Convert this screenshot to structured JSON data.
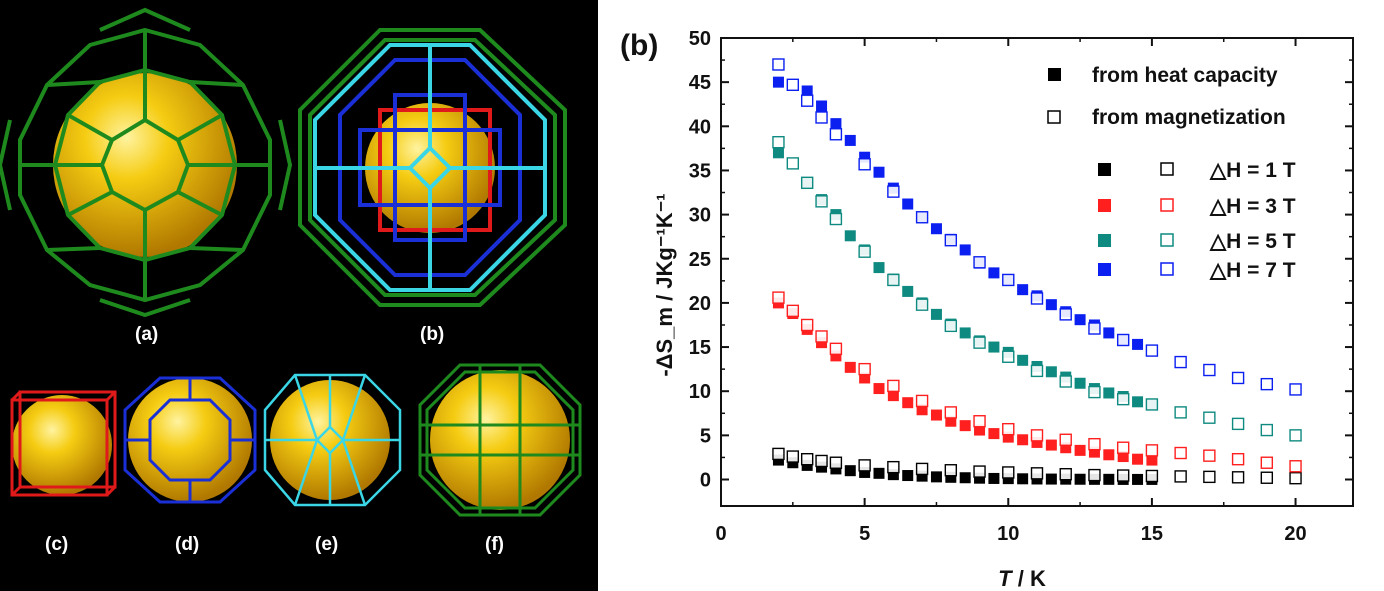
{
  "left_panel": {
    "labels": [
      "(a)",
      "(b)",
      "(c)",
      "(d)",
      "(e)",
      "(f)"
    ],
    "colors": {
      "background": "#000000",
      "sphere": "#f2c20a",
      "green_cage": "#1e8a1e",
      "blue_cage": "#1a2fd6",
      "cyan_cage": "#3ad6e6",
      "red_cage": "#e01a1a"
    }
  },
  "chart_data": {
    "type": "scatter",
    "panel_label": "(b)",
    "xlabel_italic": "T",
    "xlabel_rest": " / K",
    "ylabel": "-ΔS_m / JKg⁻¹K⁻¹",
    "xlim": [
      0,
      22
    ],
    "ylim": [
      -3,
      50
    ],
    "xticks": [
      0,
      5,
      10,
      15,
      20
    ],
    "yticks": [
      0,
      5,
      10,
      15,
      20,
      25,
      30,
      35,
      40,
      45,
      50
    ],
    "grid": false,
    "legend": {
      "placement": "top-right",
      "marker_entries": [
        {
          "label": "from heat capacity",
          "marker": "filled",
          "color": "#000000"
        },
        {
          "label": "from magnetization",
          "marker": "open",
          "color": "#000000"
        }
      ],
      "field_entries": [
        {
          "label": "△H = 1 T",
          "color": "#000000"
        },
        {
          "label": "△H = 3 T",
          "color": "#ff1f1f"
        },
        {
          "label": "△H = 5 T",
          "color": "#0f8a80"
        },
        {
          "label": "△H = 7 T",
          "color": "#0a1ff0"
        }
      ]
    },
    "series": [
      {
        "field": "1 T",
        "source": "heat capacity",
        "marker": "filled",
        "color": "#000000",
        "x": [
          2,
          2.5,
          3,
          3.5,
          4,
          4.5,
          5,
          5.5,
          6,
          6.5,
          7,
          7.5,
          8,
          8.5,
          9,
          9.5,
          10,
          10.5,
          11,
          11.5,
          12,
          12.5,
          13,
          13.5,
          14,
          14.5,
          15
        ],
        "y": [
          2.2,
          1.9,
          1.6,
          1.4,
          1.2,
          1.0,
          0.8,
          0.7,
          0.55,
          0.45,
          0.38,
          0.3,
          0.25,
          0.2,
          0.15,
          0.12,
          0.1,
          0.08,
          0.06,
          0.05,
          0.04,
          0.03,
          0.02,
          0.02,
          0.01,
          0.01,
          0.01
        ]
      },
      {
        "field": "1 T",
        "source": "magnetization",
        "marker": "open",
        "color": "#000000",
        "x": [
          2,
          2.5,
          3,
          3.5,
          4,
          5,
          6,
          7,
          8,
          9,
          10,
          11,
          12,
          13,
          14,
          15,
          16,
          17,
          18,
          19,
          20
        ],
        "y": [
          2.9,
          2.6,
          2.3,
          2.1,
          1.9,
          1.6,
          1.4,
          1.2,
          1.05,
          0.9,
          0.8,
          0.7,
          0.6,
          0.5,
          0.45,
          0.4,
          0.35,
          0.3,
          0.25,
          0.2,
          0.15
        ]
      },
      {
        "field": "3 T",
        "source": "heat capacity",
        "marker": "filled",
        "color": "#ff1f1f",
        "x": [
          2,
          2.5,
          3,
          3.5,
          4,
          4.5,
          5,
          5.5,
          6,
          6.5,
          7,
          7.5,
          8,
          8.5,
          9,
          9.5,
          10,
          10.5,
          11,
          11.5,
          12,
          12.5,
          13,
          13.5,
          14,
          14.5,
          15
        ],
        "y": [
          20,
          18.8,
          17,
          15.5,
          14,
          12.7,
          11.5,
          10.3,
          9.5,
          8.7,
          7.9,
          7.3,
          6.6,
          6.1,
          5.6,
          5.2,
          4.8,
          4.5,
          4.2,
          3.9,
          3.6,
          3.3,
          3.1,
          2.8,
          2.6,
          2.3,
          2.2
        ]
      },
      {
        "field": "3 T",
        "source": "magnetization",
        "marker": "open",
        "color": "#ff1f1f",
        "x": [
          2,
          2.5,
          3,
          3.5,
          4,
          5,
          6,
          7,
          8,
          9,
          10,
          11,
          12,
          13,
          14,
          15,
          16,
          17,
          18,
          19,
          20
        ],
        "y": [
          20.6,
          19.1,
          17.5,
          16.2,
          14.8,
          12.5,
          10.6,
          8.9,
          7.6,
          6.6,
          5.7,
          5.0,
          4.5,
          4.0,
          3.6,
          3.3,
          3.0,
          2.7,
          2.3,
          1.9,
          1.5
        ]
      },
      {
        "field": "5 T",
        "source": "heat capacity",
        "marker": "filled",
        "color": "#0f8a80",
        "x": [
          2,
          3,
          3.5,
          4,
          4.5,
          5,
          5.5,
          6,
          6.5,
          7,
          7.5,
          8,
          8.5,
          9,
          9.5,
          10,
          10.5,
          11,
          11.5,
          12,
          12.5,
          13,
          13.5,
          14,
          14.5,
          15
        ],
        "y": [
          37,
          33.6,
          31.7,
          30,
          27.6,
          26,
          24,
          22.7,
          21.3,
          20,
          18.7,
          17.6,
          16.6,
          15.7,
          15,
          14.4,
          13.5,
          12.8,
          12.2,
          11.6,
          10.9,
          10.3,
          9.8,
          9.4,
          8.8,
          8.5
        ]
      },
      {
        "field": "5 T",
        "source": "magnetization",
        "marker": "open",
        "color": "#0f8a80",
        "x": [
          2,
          2.5,
          3,
          3.5,
          4,
          5,
          6,
          7,
          8,
          9,
          10,
          11,
          12,
          13,
          14,
          15,
          16,
          17,
          18,
          19,
          20
        ],
        "y": [
          38.2,
          35.8,
          33.6,
          31.5,
          29.5,
          25.8,
          22.6,
          19.8,
          17.4,
          15.5,
          13.9,
          12.3,
          11.1,
          9.9,
          9.1,
          8.5,
          7.6,
          7.0,
          6.3,
          5.6,
          5.0
        ]
      },
      {
        "field": "7 T",
        "source": "heat capacity",
        "marker": "filled",
        "color": "#0a1ff0",
        "x": [
          2,
          3,
          3.5,
          4,
          4.5,
          5,
          5.5,
          6,
          6.5,
          7,
          7.5,
          8,
          8.5,
          9,
          9.5,
          10,
          10.5,
          11,
          11.5,
          12,
          12.5,
          13,
          13.5,
          14,
          14.5
        ],
        "y": [
          45,
          44,
          42.3,
          40.3,
          38.4,
          36.5,
          34.8,
          33,
          31.2,
          29.7,
          28.4,
          27.2,
          26,
          24.5,
          23.4,
          22.6,
          21.5,
          20.8,
          19.8,
          19,
          18.1,
          17.5,
          16.6,
          15.8,
          15.3
        ]
      },
      {
        "field": "7 T",
        "source": "magnetization",
        "marker": "open",
        "color": "#0a1ff0",
        "x": [
          2,
          2.5,
          3,
          3.5,
          4,
          5,
          6,
          7,
          8,
          9,
          10,
          11,
          12,
          13,
          14,
          15,
          16,
          17,
          18,
          19,
          20
        ],
        "y": [
          47,
          44.7,
          42.9,
          41,
          39.1,
          35.7,
          32.6,
          29.7,
          27.1,
          24.6,
          22.6,
          20.5,
          18.7,
          17.1,
          15.8,
          14.6,
          13.3,
          12.4,
          11.5,
          10.8,
          10.2
        ]
      }
    ]
  }
}
